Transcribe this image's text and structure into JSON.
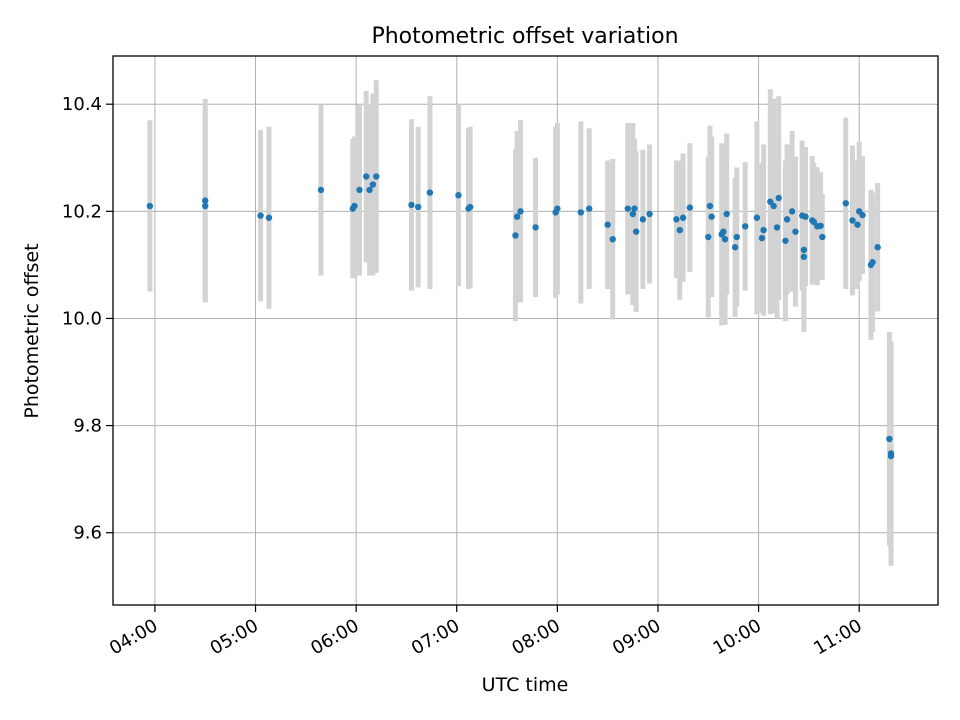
{
  "chart_data": {
    "type": "scatter",
    "title": "Photometric offset variation",
    "xlabel": "UTC time",
    "ylabel": "Photometric offset",
    "x_axis": "time (UTC)",
    "xlim": [
      "03:35",
      "11:47"
    ],
    "ylim": [
      9.465,
      10.49
    ],
    "xticks": [
      "04:00",
      "05:00",
      "06:00",
      "07:00",
      "08:00",
      "09:00",
      "10:00",
      "11:00"
    ],
    "yticks": [
      9.6,
      9.8,
      10.0,
      10.2,
      10.4
    ],
    "ytick_labels": [
      "9.6",
      "9.8",
      "10.0",
      "10.2",
      "10.4"
    ],
    "grid": true,
    "legend": "none",
    "marker_color": "#1f77b4",
    "errorbar_color": "#d3d3d3",
    "series": [
      {
        "x": [
          "03:57",
          "04:30",
          "04:30",
          "05:03",
          "05:08",
          "05:39",
          "05:58",
          "05:59",
          "06:02",
          "06:06",
          "06:08",
          "06:10",
          "06:12",
          "06:33",
          "06:37",
          "06:44",
          "07:01",
          "07:07",
          "07:08",
          "07:35",
          "07:36",
          "07:38",
          "07:47",
          "07:59",
          "08:00",
          "08:14",
          "08:19",
          "08:30",
          "08:33",
          "08:42",
          "08:45",
          "08:46",
          "08:47",
          "08:51",
          "08:55",
          "09:11",
          "09:13",
          "09:15",
          "09:19",
          "09:30",
          "09:31",
          "09:32",
          "09:38",
          "09:39",
          "09:40",
          "09:41",
          "09:46",
          "09:47",
          "09:52",
          "09:59",
          "10:02",
          "10:03",
          "10:07",
          "10:09",
          "10:11",
          "10:12",
          "10:16",
          "10:17",
          "10:20",
          "10:22",
          "10:26",
          "10:27",
          "10:27",
          "10:28",
          "10:32",
          "10:33",
          "10:35",
          "10:37",
          "10:38",
          "10:52",
          "10:56",
          "10:59",
          "11:00",
          "11:02",
          "11:07",
          "11:08",
          "11:11",
          "11:18",
          "11:19",
          "11:19"
        ],
        "y": [
          10.21,
          10.22,
          10.21,
          10.192,
          10.188,
          10.24,
          10.205,
          10.21,
          10.24,
          10.265,
          10.24,
          10.25,
          10.265,
          10.212,
          10.208,
          10.235,
          10.23,
          10.205,
          10.208,
          10.155,
          10.19,
          10.2,
          10.17,
          10.198,
          10.205,
          10.198,
          10.205,
          10.175,
          10.148,
          10.205,
          10.195,
          10.205,
          10.162,
          10.185,
          10.195,
          10.185,
          10.165,
          10.188,
          10.207,
          10.152,
          10.21,
          10.19,
          10.157,
          10.162,
          10.148,
          10.195,
          10.133,
          10.152,
          10.172,
          10.188,
          10.15,
          10.165,
          10.218,
          10.21,
          10.17,
          10.225,
          10.145,
          10.185,
          10.2,
          10.162,
          10.192,
          10.115,
          10.128,
          10.19,
          10.183,
          10.18,
          10.172,
          10.173,
          10.152,
          10.215,
          10.183,
          10.175,
          10.2,
          10.193,
          10.1,
          10.105,
          10.133,
          9.775,
          9.748,
          9.743
        ],
        "yerr": [
          0.16,
          0.19,
          0.18,
          0.16,
          0.17,
          0.16,
          0.13,
          0.13,
          0.16,
          0.16,
          0.16,
          0.17,
          0.18,
          0.16,
          0.15,
          0.18,
          0.17,
          0.15,
          0.15,
          0.16,
          0.16,
          0.17,
          0.13,
          0.16,
          0.16,
          0.17,
          0.15,
          0.12,
          0.15,
          0.16,
          0.17,
          0.13,
          0.15,
          0.13,
          0.13,
          0.11,
          0.13,
          0.12,
          0.12,
          0.15,
          0.15,
          0.15,
          0.17,
          0.16,
          0.16,
          0.15,
          0.13,
          0.13,
          0.12,
          0.18,
          0.14,
          0.16,
          0.21,
          0.2,
          0.17,
          0.19,
          0.15,
          0.14,
          0.15,
          0.14,
          0.14,
          0.14,
          0.13,
          0.13,
          0.12,
          0.11,
          0.11,
          0.1,
          0.08,
          0.16,
          0.14,
          0.12,
          0.13,
          0.11,
          0.14,
          0.13,
          0.12,
          0.2,
          0.21,
          0.19
        ]
      }
    ]
  }
}
